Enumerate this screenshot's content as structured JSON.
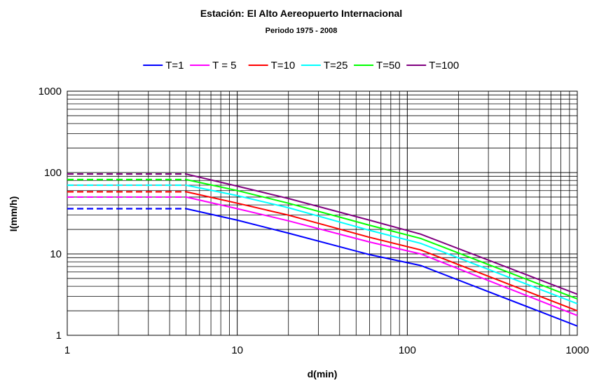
{
  "chart_data": {
    "type": "line",
    "title": "Estación: El Alto Aereopuerto Internacional",
    "subtitle": "Periodo 1975 - 2008",
    "xlabel": "d(min)",
    "ylabel": "I(mm/h)",
    "xscale": "log",
    "yscale": "log",
    "xlim": [
      1,
      1000
    ],
    "ylim": [
      1,
      1000
    ],
    "x_ticks": [
      "1",
      "10",
      "100",
      "1000"
    ],
    "y_ticks": [
      "1",
      "10",
      "100",
      "1000"
    ],
    "grid": true,
    "legend_position": "top",
    "series": [
      {
        "name": "T=1",
        "color": "#0000ff",
        "flat_value": 36,
        "x": [
          5,
          10,
          20,
          60,
          120,
          1000
        ],
        "y": [
          36,
          26,
          18,
          9.8,
          7.2,
          1.3
        ]
      },
      {
        "name": "T = 5",
        "color": "#ff00ff",
        "flat_value": 50,
        "x": [
          5,
          10,
          20,
          60,
          120,
          1000
        ],
        "y": [
          50,
          36,
          25.5,
          14,
          10,
          1.75
        ]
      },
      {
        "name": "T=10",
        "color": "#ff0000",
        "flat_value": 58,
        "x": [
          5,
          10,
          20,
          60,
          120,
          1000
        ],
        "y": [
          58,
          42,
          30,
          16,
          11.2,
          2.0
        ]
      },
      {
        "name": "T=25",
        "color": "#00ffff",
        "flat_value": 70,
        "x": [
          5,
          10,
          20,
          60,
          120,
          1000
        ],
        "y": [
          70,
          52,
          37,
          19.5,
          13.5,
          2.45
        ]
      },
      {
        "name": "T=50",
        "color": "#00ff00",
        "flat_value": 82,
        "x": [
          5,
          10,
          20,
          60,
          120,
          1000
        ],
        "y": [
          82,
          60,
          42,
          22.5,
          15.5,
          2.8
        ]
      },
      {
        "name": "T=100",
        "color": "#800080",
        "flat_value": 96,
        "x": [
          5,
          10,
          20,
          60,
          120,
          1000
        ],
        "y": [
          96,
          68,
          48,
          26,
          17.5,
          3.2
        ]
      }
    ],
    "dashed_segment_x": [
      1,
      5
    ]
  }
}
